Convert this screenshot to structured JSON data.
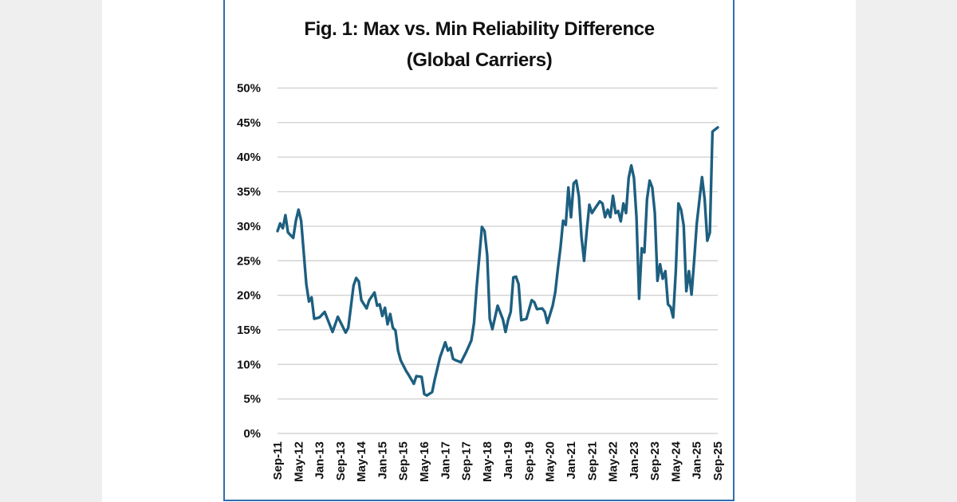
{
  "chart_data": {
    "type": "line",
    "title": "Fig. 1: Max vs. Min Reliability Difference",
    "subtitle": "(Global Carriers)",
    "xlabel": "",
    "ylabel": "",
    "ylim": [
      0,
      50
    ],
    "y_ticks": [
      "0%",
      "5%",
      "10%",
      "15%",
      "20%",
      "25%",
      "30%",
      "35%",
      "40%",
      "45%",
      "50%"
    ],
    "x_range": [
      "2011-09",
      "2025-09"
    ],
    "x_ticks": [
      "Sep-11",
      "May-12",
      "Jan-13",
      "Sep-13",
      "May-14",
      "Jan-15",
      "Sep-15",
      "May-16",
      "Jan-17",
      "Sep-17",
      "May-18",
      "Jan-19",
      "Sep-19",
      "May-20",
      "Jan-21",
      "Sep-21",
      "May-22",
      "Jan-23",
      "Sep-23",
      "May-24",
      "Jan-25",
      "Sep-25"
    ],
    "grid": true,
    "legend": "none",
    "line_color": "#1d5f80",
    "series": [
      {
        "points": [
          [
            "2011-09",
            29.3
          ],
          [
            "2011-10",
            30.4
          ],
          [
            "2011-11",
            29.7
          ],
          [
            "2011-12",
            31.6
          ],
          [
            "2012-01",
            29.1
          ],
          [
            "2012-03",
            28.3
          ],
          [
            "2012-04",
            30.8
          ],
          [
            "2012-05",
            32.4
          ],
          [
            "2012-06",
            30.8
          ],
          [
            "2012-08",
            21.6
          ],
          [
            "2012-09",
            19.1
          ],
          [
            "2012-10",
            19.7
          ],
          [
            "2012-11",
            16.6
          ],
          [
            "2013-01",
            16.8
          ],
          [
            "2013-03",
            17.6
          ],
          [
            "2013-06",
            14.7
          ],
          [
            "2013-08",
            16.9
          ],
          [
            "2013-11",
            14.6
          ],
          [
            "2013-12",
            15.3
          ],
          [
            "2014-02",
            21.4
          ],
          [
            "2014-03",
            22.5
          ],
          [
            "2014-04",
            22.0
          ],
          [
            "2014-05",
            19.3
          ],
          [
            "2014-07",
            18.1
          ],
          [
            "2014-08",
            19.3
          ],
          [
            "2014-10",
            20.4
          ],
          [
            "2014-11",
            18.5
          ],
          [
            "2014-12",
            18.7
          ],
          [
            "2015-01",
            17.0
          ],
          [
            "2015-02",
            18.2
          ],
          [
            "2015-03",
            15.8
          ],
          [
            "2015-04",
            17.3
          ],
          [
            "2015-05",
            15.3
          ],
          [
            "2015-06",
            14.9
          ],
          [
            "2015-07",
            12.0
          ],
          [
            "2015-08",
            10.6
          ],
          [
            "2015-10",
            9.1
          ],
          [
            "2015-11",
            8.5
          ],
          [
            "2016-01",
            7.2
          ],
          [
            "2016-02",
            8.3
          ],
          [
            "2016-04",
            8.2
          ],
          [
            "2016-05",
            5.7
          ],
          [
            "2016-06",
            5.5
          ],
          [
            "2016-08",
            6.0
          ],
          [
            "2016-09",
            7.8
          ],
          [
            "2016-11",
            11.0
          ],
          [
            "2017-01",
            13.2
          ],
          [
            "2017-02",
            12.0
          ],
          [
            "2017-03",
            12.4
          ],
          [
            "2017-04",
            10.8
          ],
          [
            "2017-05",
            10.6
          ],
          [
            "2017-07",
            10.3
          ],
          [
            "2017-09",
            11.8
          ],
          [
            "2017-11",
            13.5
          ],
          [
            "2017-12",
            16.0
          ],
          [
            "2018-01",
            21.2
          ],
          [
            "2018-03",
            29.9
          ],
          [
            "2018-04",
            29.3
          ],
          [
            "2018-05",
            25.8
          ],
          [
            "2018-06",
            16.6
          ],
          [
            "2018-07",
            15.1
          ],
          [
            "2018-09",
            18.5
          ],
          [
            "2018-11",
            16.5
          ],
          [
            "2018-12",
            14.7
          ],
          [
            "2019-01",
            16.4
          ],
          [
            "2019-02",
            17.6
          ],
          [
            "2019-03",
            22.6
          ],
          [
            "2019-04",
            22.7
          ],
          [
            "2019-05",
            21.6
          ],
          [
            "2019-06",
            16.4
          ],
          [
            "2019-08",
            16.6
          ],
          [
            "2019-10",
            19.3
          ],
          [
            "2019-11",
            19.0
          ],
          [
            "2019-12",
            18.0
          ],
          [
            "2020-02",
            18.1
          ],
          [
            "2020-03",
            17.6
          ],
          [
            "2020-04",
            16.0
          ],
          [
            "2020-06",
            18.5
          ],
          [
            "2020-07",
            20.5
          ],
          [
            "2020-08",
            23.9
          ],
          [
            "2020-09",
            27.0
          ],
          [
            "2020-10",
            30.8
          ],
          [
            "2020-11",
            30.2
          ],
          [
            "2020-12",
            35.6
          ],
          [
            "2021-01",
            31.3
          ],
          [
            "2021-02",
            36.2
          ],
          [
            "2021-03",
            36.6
          ],
          [
            "2021-04",
            34.3
          ],
          [
            "2021-05",
            28.5
          ],
          [
            "2021-06",
            25.0
          ],
          [
            "2021-07",
            29.3
          ],
          [
            "2021-08",
            33.1
          ],
          [
            "2021-09",
            31.9
          ],
          [
            "2021-10",
            32.5
          ],
          [
            "2021-12",
            33.6
          ],
          [
            "2022-01",
            33.3
          ],
          [
            "2022-02",
            31.3
          ],
          [
            "2022-03",
            32.4
          ],
          [
            "2022-04",
            31.3
          ],
          [
            "2022-05",
            34.4
          ],
          [
            "2022-06",
            31.9
          ],
          [
            "2022-07",
            32.2
          ],
          [
            "2022-08",
            30.7
          ],
          [
            "2022-09",
            33.3
          ],
          [
            "2022-10",
            31.9
          ],
          [
            "2022-11",
            37.0
          ],
          [
            "2022-12",
            38.8
          ],
          [
            "2023-01",
            37.0
          ],
          [
            "2023-02",
            31.3
          ],
          [
            "2023-03",
            19.5
          ],
          [
            "2023-04",
            26.8
          ],
          [
            "2023-05",
            26.2
          ],
          [
            "2023-06",
            33.9
          ],
          [
            "2023-07",
            36.6
          ],
          [
            "2023-08",
            35.6
          ],
          [
            "2023-09",
            31.9
          ],
          [
            "2023-10",
            22.1
          ],
          [
            "2023-11",
            24.5
          ],
          [
            "2023-12",
            22.4
          ],
          [
            "2024-01",
            23.5
          ],
          [
            "2024-02",
            18.7
          ],
          [
            "2024-03",
            18.3
          ],
          [
            "2024-04",
            16.8
          ],
          [
            "2024-05",
            23.5
          ],
          [
            "2024-06",
            33.3
          ],
          [
            "2024-07",
            32.4
          ],
          [
            "2024-08",
            30.1
          ],
          [
            "2024-09",
            20.6
          ],
          [
            "2024-10",
            23.5
          ],
          [
            "2024-11",
            20.1
          ],
          [
            "2024-12",
            25.0
          ],
          [
            "2025-01",
            30.4
          ],
          [
            "2025-03",
            37.1
          ],
          [
            "2025-04",
            33.9
          ],
          [
            "2025-05",
            27.9
          ],
          [
            "2025-06",
            29.1
          ],
          [
            "2025-07",
            43.7
          ],
          [
            "2025-09",
            44.3
          ]
        ]
      }
    ]
  }
}
